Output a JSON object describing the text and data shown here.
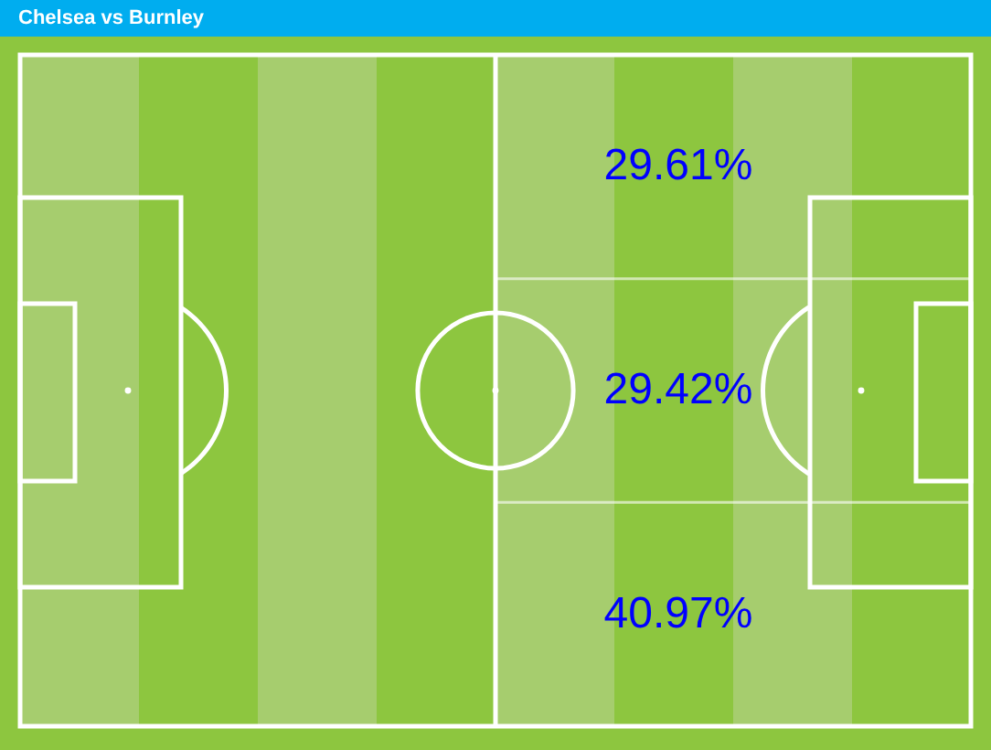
{
  "chart_data": {
    "type": "other",
    "title": "Chelsea vs Burnley",
    "categories": [
      null,
      null,
      null
    ],
    "values": [
      29.61,
      29.42,
      40.97
    ],
    "value_labels": [
      "29.61%",
      "29.42%",
      "40.97%"
    ],
    "color": "#0000ff"
  }
}
